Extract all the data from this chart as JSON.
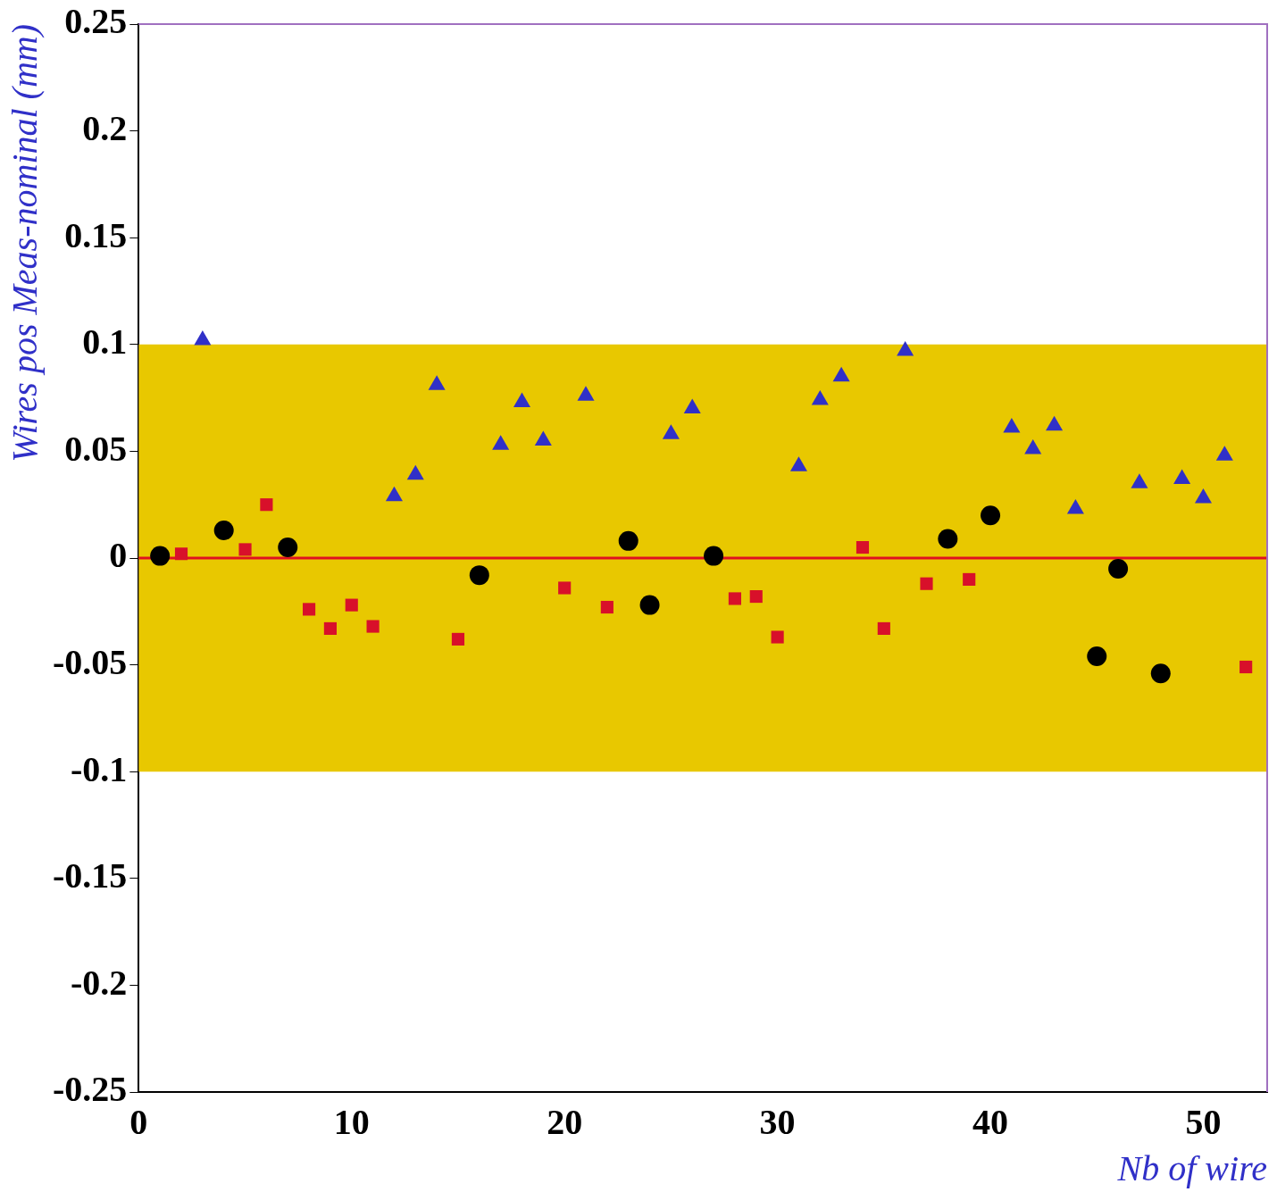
{
  "chart_data": {
    "type": "scatter",
    "xlabel": "Nb of wire",
    "ylabel": "Wires pos Meas-nominal (mm)",
    "xlim": [
      0,
      53
    ],
    "xticks": [
      0,
      10,
      20,
      30,
      40,
      50
    ],
    "ylim": [
      -0.25,
      0.25
    ],
    "yticks": [
      -0.25,
      -0.2,
      -0.15,
      -0.1,
      -0.05,
      0,
      0.05,
      0.1,
      0.15,
      0.2,
      0.25
    ],
    "grid": false,
    "legend": false,
    "bands": [
      {
        "axis": "y",
        "from": -0.1,
        "to": 0.1,
        "color": "#e8c800"
      }
    ],
    "ref_lines": [
      {
        "axis": "y",
        "value": 0,
        "color": "#e01020",
        "line_style": "solid"
      }
    ],
    "series": [
      {
        "color": "#000000",
        "marker": "circle",
        "x": [
          1,
          4,
          7,
          16,
          23,
          24,
          27,
          38,
          40,
          45,
          46,
          48
        ],
        "values": [
          0.001,
          0.013,
          0.005,
          -0.008,
          0.008,
          -0.022,
          0.001,
          0.009,
          0.02,
          -0.046,
          -0.005,
          -0.054
        ]
      },
      {
        "color": "#d8102a",
        "marker": "square",
        "x": [
          2,
          5,
          6,
          8,
          9,
          10,
          11,
          15,
          20,
          22,
          28,
          29,
          30,
          34,
          35,
          37,
          39,
          52
        ],
        "values": [
          0.002,
          0.004,
          0.025,
          -0.024,
          -0.033,
          -0.022,
          -0.032,
          -0.038,
          -0.014,
          -0.023,
          -0.019,
          -0.018,
          -0.037,
          0.005,
          -0.033,
          -0.012,
          -0.01,
          -0.051
        ]
      },
      {
        "color": "#3030c8",
        "marker": "triangle",
        "x": [
          3,
          12,
          13,
          14,
          17,
          18,
          19,
          21,
          25,
          26,
          31,
          32,
          33,
          36,
          41,
          42,
          43,
          44,
          47,
          49,
          50,
          51
        ],
        "values": [
          0.102,
          0.029,
          0.039,
          0.081,
          0.053,
          0.073,
          0.055,
          0.076,
          0.058,
          0.07,
          0.043,
          0.074,
          0.085,
          0.097,
          0.061,
          0.051,
          0.062,
          0.023,
          0.035,
          0.037,
          0.028,
          0.048
        ]
      }
    ]
  }
}
